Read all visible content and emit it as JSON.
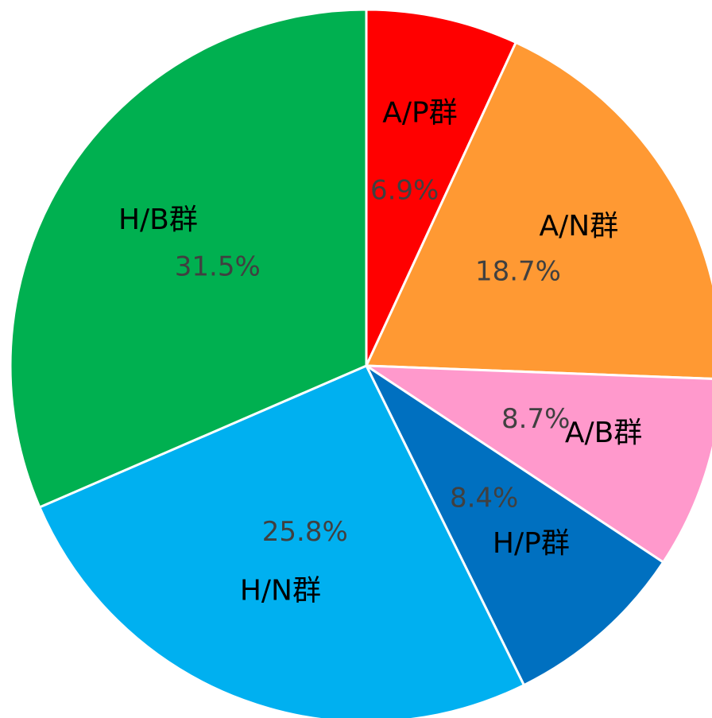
{
  "chart_data": {
    "type": "pie",
    "categories": [
      "A/P群",
      "A/N群",
      "A/B群",
      "H/P群",
      "H/N群",
      "H/B群"
    ],
    "values": [
      6.9,
      18.7,
      8.7,
      8.4,
      25.8,
      31.5
    ],
    "value_labels": [
      "6.9%",
      "18.7%",
      "8.7%",
      "8.4%",
      "25.8%",
      "31.5%"
    ],
    "colors": [
      "#ff0000",
      "#ff9933",
      "#ff99cc",
      "#0070c0",
      "#00b0f0",
      "#00b050"
    ]
  }
}
